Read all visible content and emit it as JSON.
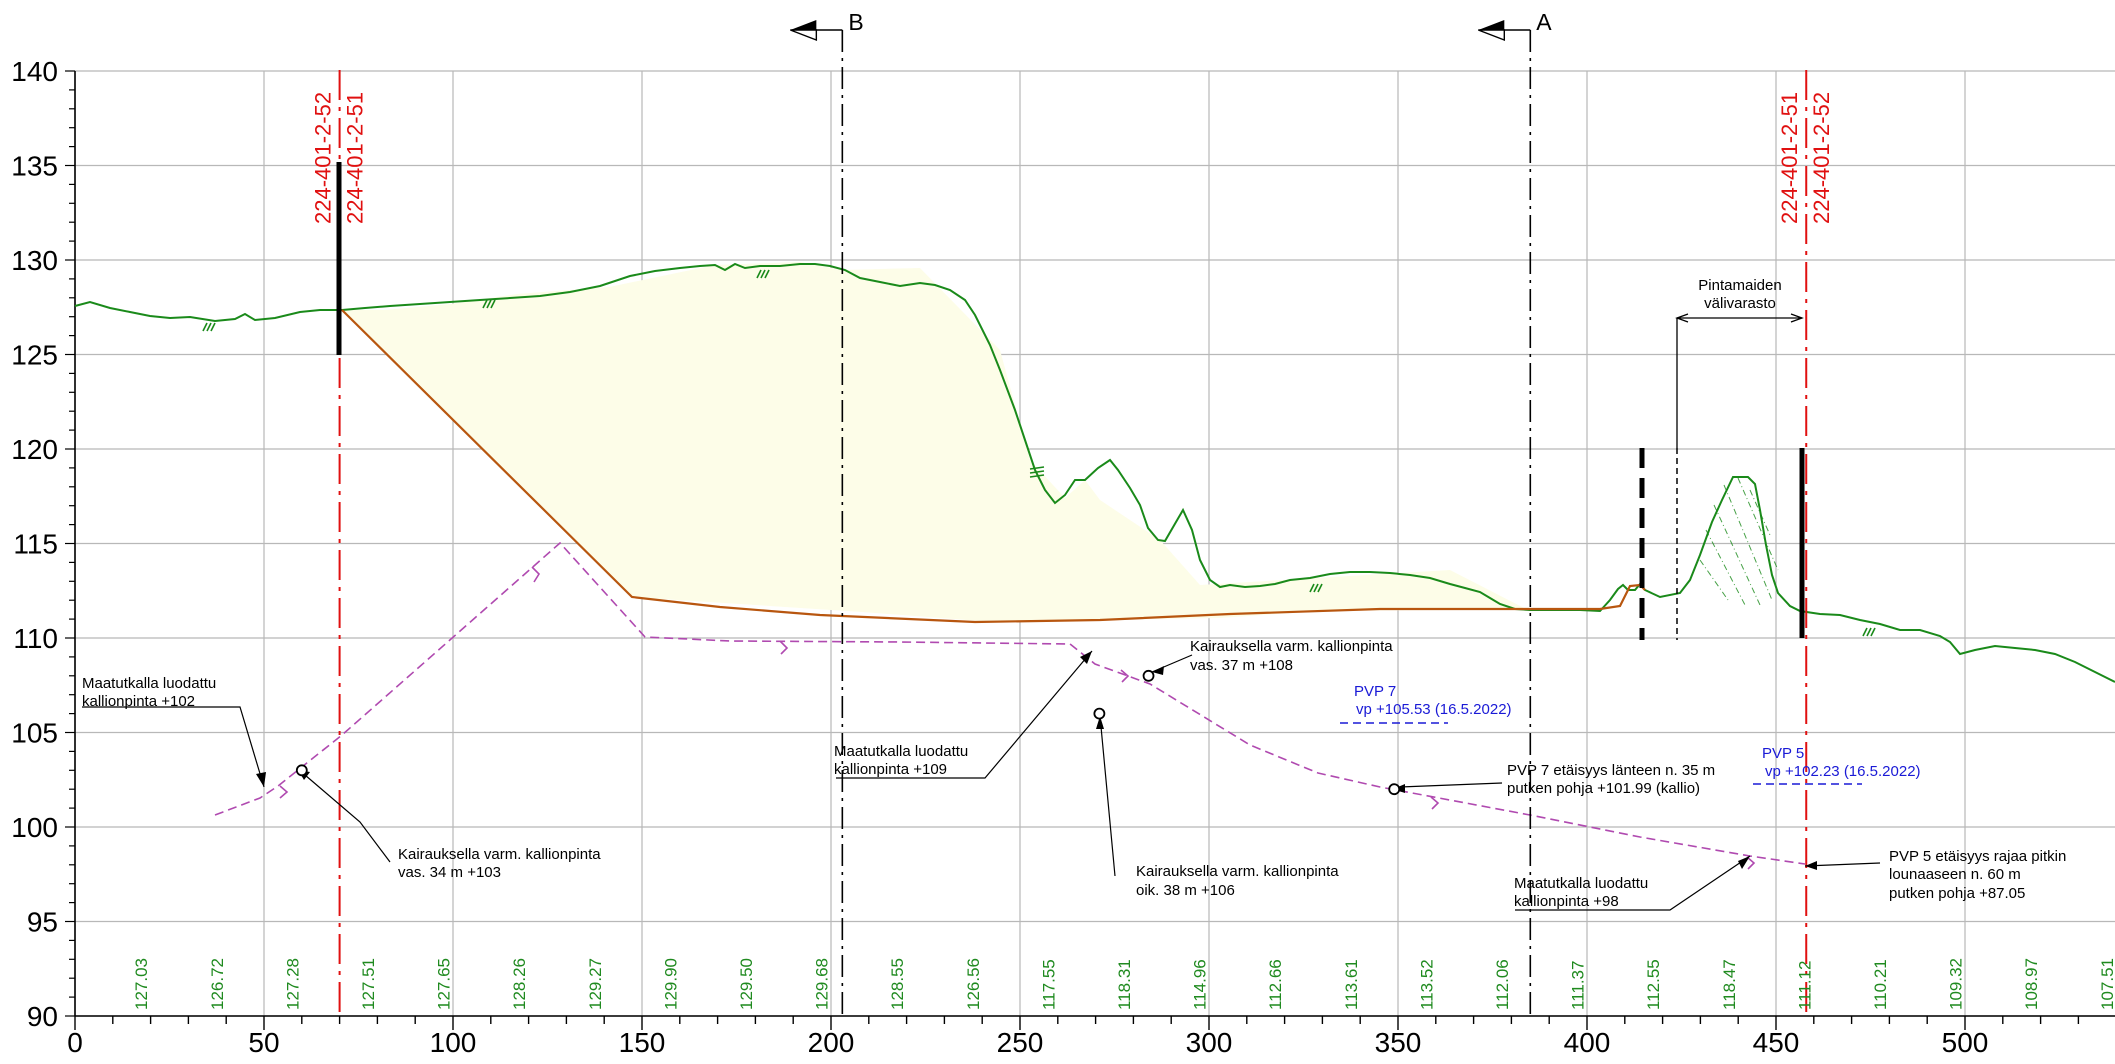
{
  "colors": {
    "grid": "#b8b8b8",
    "terrain": "#1a8a1a",
    "excavation": "#b8560f",
    "fill": "#fdfde8",
    "rock": "#b04ab0",
    "red_line": "#e01010",
    "water": "#1a1ad6",
    "elevation_text": "#1f8a1f"
  },
  "axes": {
    "x_ticks": [
      "0",
      "50",
      "100",
      "150",
      "200",
      "250",
      "300",
      "350",
      "400",
      "450",
      "500"
    ],
    "y_ticks": [
      "140",
      "135",
      "130",
      "125",
      "120",
      "115",
      "110",
      "105",
      "100",
      "95",
      "90"
    ]
  },
  "section_markers": [
    {
      "label": "B",
      "x": 203
    },
    {
      "label": "A",
      "x": 385
    }
  ],
  "reference_lines": [
    {
      "x": 70,
      "labels": [
        "224-401-2-52",
        "224-401-2-51"
      ]
    },
    {
      "x": 458,
      "labels": [
        "224-401-2-51",
        "224-401-2-52"
      ]
    }
  ],
  "annotations": {
    "storage": [
      "Pintamaiden",
      "välivarasto"
    ],
    "gpr_102": [
      "Maatutkalla luodattu",
      "kallionpinta +102"
    ],
    "drill_103": [
      "Kairauksella varm. kallionpinta",
      "vas.    34 m +103"
    ],
    "gpr_109": [
      "Maatutkalla luodattu",
      "kallionpinta +109"
    ],
    "drill_108": [
      "Kairauksella varm. kallionpinta",
      "vas.    37 m +108"
    ],
    "drill_106": [
      "Kairauksella varm. kallionpinta",
      "oik.    38 m +106"
    ],
    "pvp7_pipe": [
      "PVP 7 etäisyys länteen n. 35 m",
      "putken pohja +101.99 (kallio)"
    ],
    "gpr_98": [
      "Maatutkalla luodattu",
      "kallionpinta +98"
    ],
    "pvp5_pipe": [
      "PVP 5 etäisyys rajaa pitkin",
      "lounaaseen n. 60 m",
      "putken pohja +87.05"
    ]
  },
  "water_levels": [
    {
      "label": "PVP 7",
      "value": "vp +105.53 (16.5.2022)"
    },
    {
      "label": "PVP 5",
      "value": "vp +102.23 (16.5.2022)"
    }
  ],
  "ground_elevations": [
    "127.03",
    "126.72",
    "127.28",
    "127.51",
    "127.65",
    "128.26",
    "129.27",
    "129.90",
    "129.50",
    "129.68",
    "128.55",
    "126.56",
    "117.55",
    "118.31",
    "114.96",
    "112.66",
    "113.61",
    "113.52",
    "112.06",
    "111.37",
    "112.55",
    "118.47",
    "111.12",
    "110.21",
    "109.32",
    "108.97",
    "107.51"
  ],
  "chart_data": {
    "type": "line",
    "xlim": [
      0,
      540
    ],
    "ylim": [
      90,
      140
    ],
    "series": [
      {
        "x": [
          0,
          10,
          30,
          50,
          70,
          90,
          110,
          130,
          150,
          170,
          190,
          203,
          215,
          240,
          255,
          260,
          265,
          275,
          285,
          290,
          300,
          320,
          350,
          370,
          385,
          400,
          405,
          410,
          420,
          430,
          450,
          458,
          470,
          500,
          520,
          540
        ],
        "y": [
          127.5,
          127.3,
          126.9,
          127.0,
          127.3,
          127.6,
          128.1,
          128.7,
          129.6,
          129.9,
          129.6,
          129.7,
          128.6,
          126.5,
          119.0,
          117.3,
          119.0,
          118.0,
          115.0,
          116.8,
          112.8,
          112.9,
          113.5,
          112.5,
          111.5,
          111.5,
          113.8,
          112.6,
          115.0,
          118.5,
          111.4,
          111.1,
          110.4,
          109.3,
          108.8,
          107.6
        ]
      },
      {
        "x": [
          70,
          150,
          200,
          240,
          300,
          350,
          385,
          412,
          414,
          416
        ],
        "y": [
          127.3,
          112.0,
          111.3,
          110.8,
          110.9,
          111.2,
          111.5,
          111.5,
          112.8,
          112.8
        ]
      },
      {
        "x": [
          38,
          50,
          70,
          130,
          150,
          200,
          262,
          280,
          330,
          350,
          400,
          458
        ],
        "y": [
          100.7,
          101.5,
          104.7,
          115.0,
          110.0,
          109.9,
          109.6,
          108.0,
          103.0,
          102.0,
          100.5,
          97.9
        ]
      }
    ],
    "points": [
      {
        "x": 60,
        "y": 103
      },
      {
        "x": 271,
        "y": 106
      },
      {
        "x": 284,
        "y": 108
      },
      {
        "x": 349,
        "y": 102
      }
    ]
  }
}
